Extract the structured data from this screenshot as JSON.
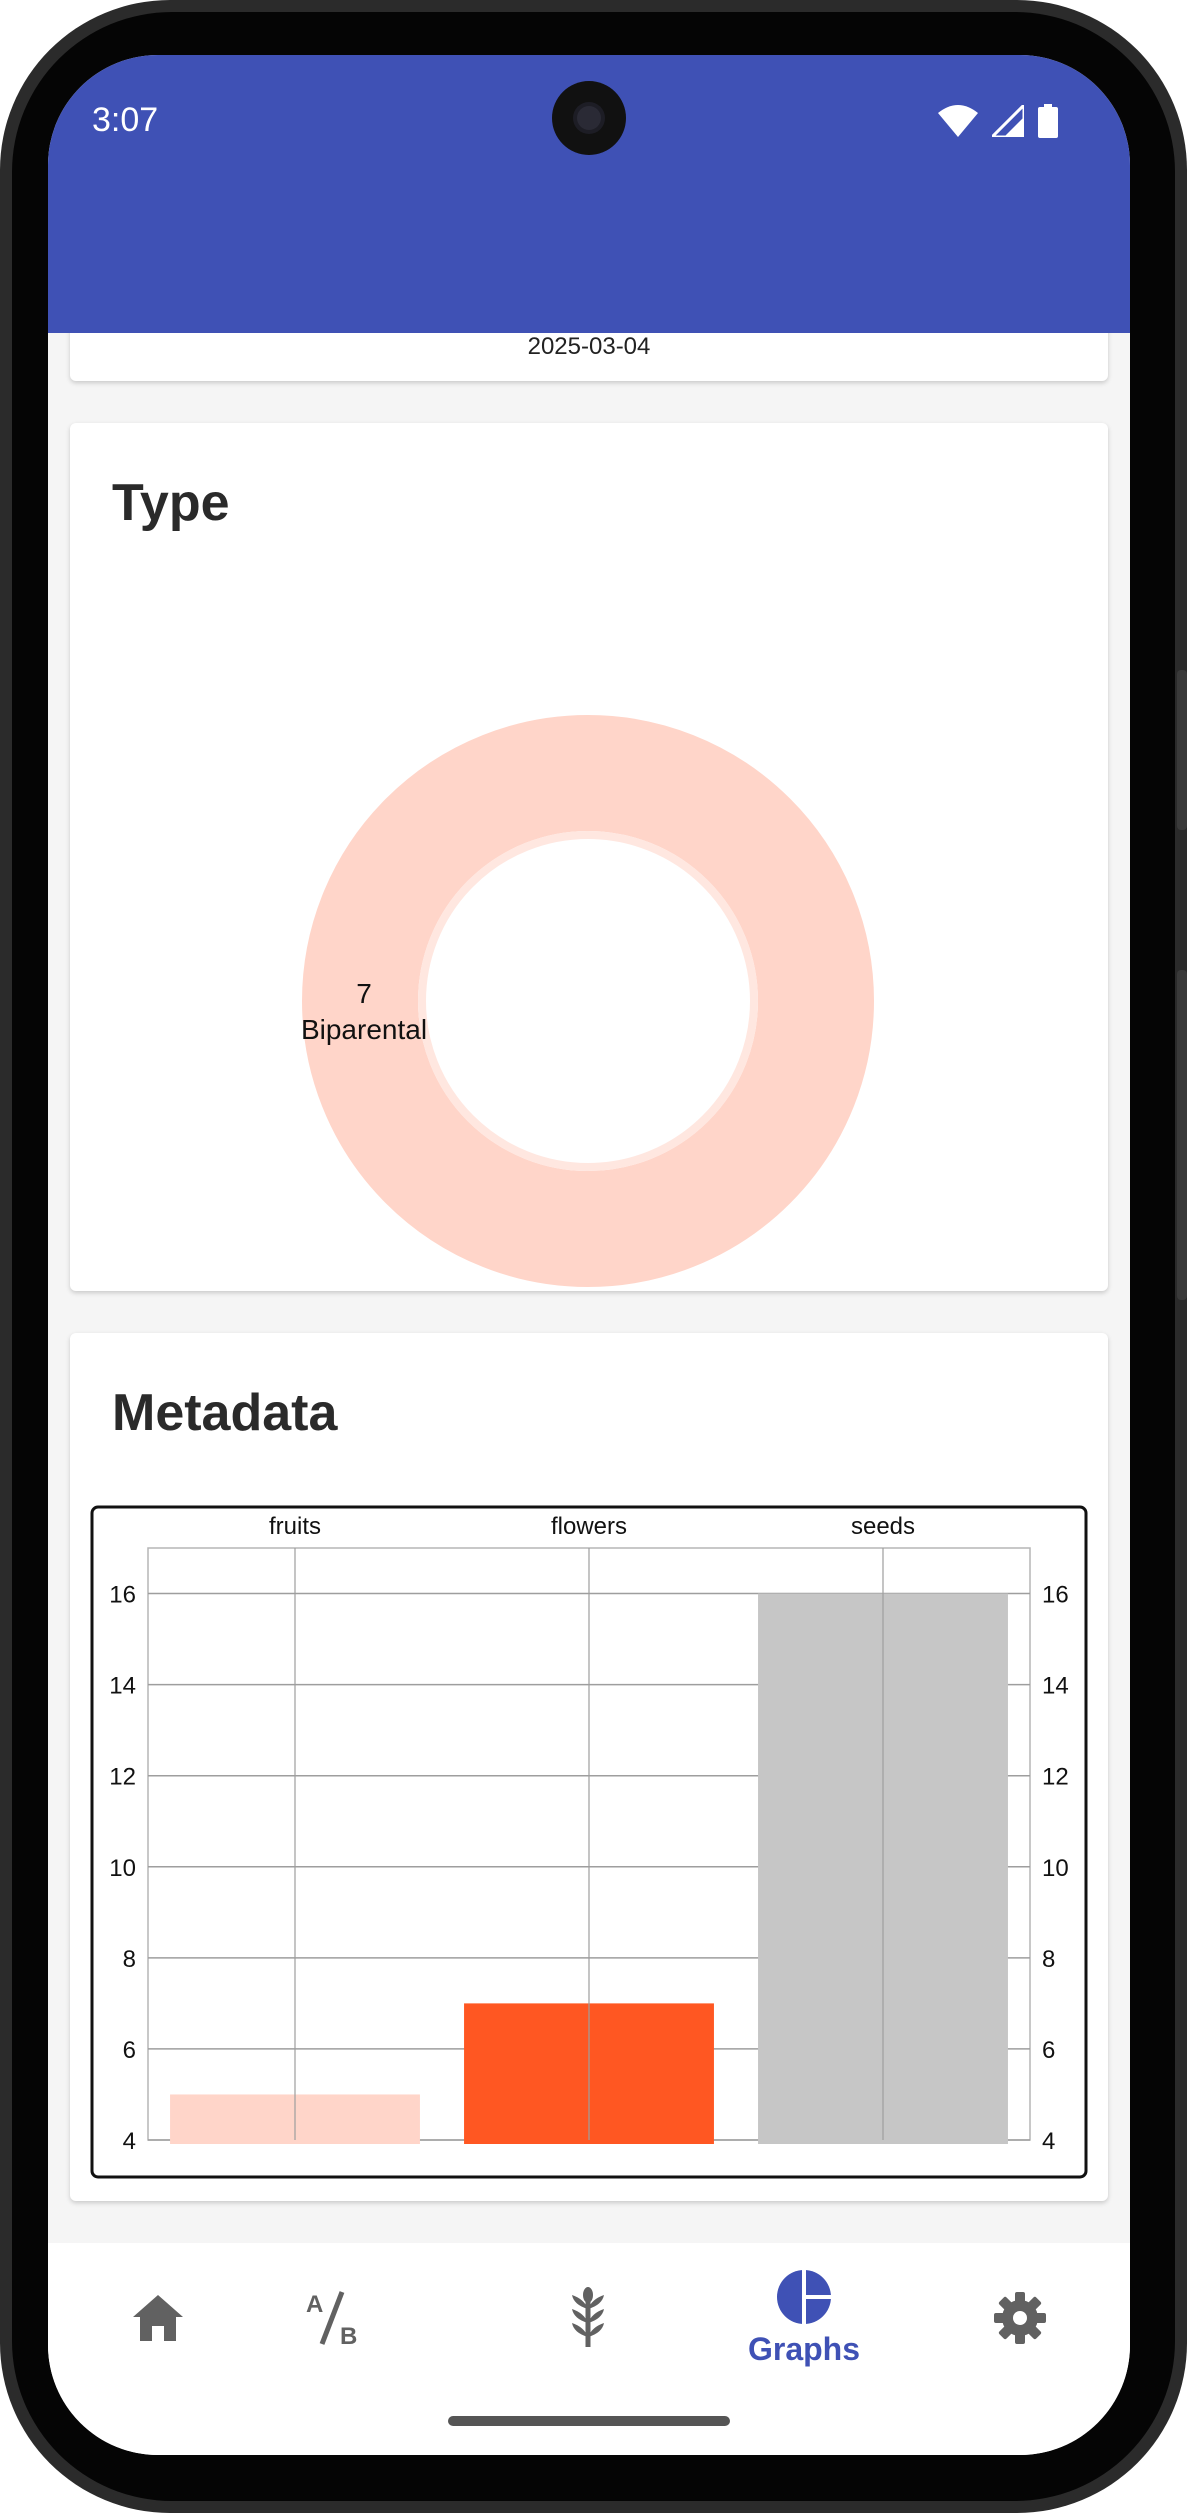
{
  "status_bar": {
    "time": "3:07"
  },
  "top_card": {
    "date": "2025-03-04"
  },
  "type_card": {
    "title": "Type",
    "slice_value": "7",
    "slice_label": "Biparental",
    "color": "#ffd5c9"
  },
  "metadata_card": {
    "title": "Metadata"
  },
  "chart_data": {
    "type": "bar",
    "categories": [
      "fruits",
      "flowers",
      "seeds"
    ],
    "values": [
      5,
      7,
      16
    ],
    "colors": [
      "#ffd5c9",
      "#ff5722",
      "#c6c6c6"
    ],
    "ylim": [
      4,
      17
    ],
    "y_ticks": [
      4,
      6,
      8,
      10,
      12,
      14,
      16
    ],
    "grid": true,
    "axis_labels_on_both_sides": true,
    "category_labels_position": "top"
  },
  "bottom_nav": {
    "items": [
      {
        "icon": "home-icon",
        "label": ""
      },
      {
        "icon": "a-b-icon",
        "label": ""
      },
      {
        "icon": "wheat-icon",
        "label": ""
      },
      {
        "icon": "pie-chart-icon",
        "label": "Graphs",
        "selected": true
      },
      {
        "icon": "settings-icon",
        "label": ""
      }
    ],
    "accent": "#3f51b5",
    "inactive": "#616161"
  },
  "colors": {
    "app_bar": "#3f51b5",
    "background": "#f5f5f5",
    "card": "#ffffff"
  }
}
